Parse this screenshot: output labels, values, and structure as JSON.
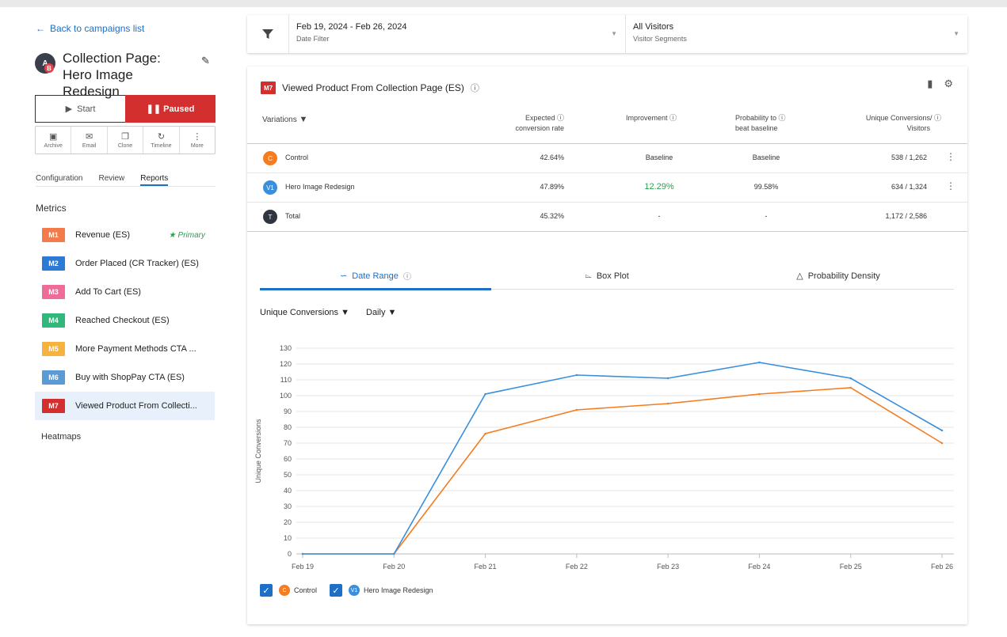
{
  "sidebar": {
    "back_label": "Back to campaigns list",
    "campaign_title": "Collection Page: Hero Image Redesign",
    "start_label": "Start",
    "paused_label": "Paused",
    "actions": [
      "Archive",
      "Email",
      "Clone",
      "Timeline",
      "More"
    ],
    "tabs": [
      "Configuration",
      "Review",
      "Reports"
    ],
    "active_tab": "Reports",
    "metrics_heading": "Metrics",
    "metrics": [
      {
        "badge": "M1",
        "label": "Revenue (ES)",
        "color": "#f37a4a",
        "primary": "Primary"
      },
      {
        "badge": "M2",
        "label": "Order Placed (CR Tracker) (ES)",
        "color": "#2b7bd6"
      },
      {
        "badge": "M3",
        "label": "Add To Cart (ES)",
        "color": "#ef6b9a"
      },
      {
        "badge": "M4",
        "label": "Reached Checkout (ES)",
        "color": "#2fb87a"
      },
      {
        "badge": "M5",
        "label": "More Payment Methods CTA ...",
        "color": "#f6b23e"
      },
      {
        "badge": "M6",
        "label": "Buy with ShopPay CTA (ES)",
        "color": "#5b9bd5"
      },
      {
        "badge": "M7",
        "label": "Viewed Product From Collecti...",
        "color": "#d32f2f"
      }
    ],
    "heatmaps_label": "Heatmaps"
  },
  "filters": {
    "date_value": "Feb 19, 2024 - Feb 26, 2024",
    "date_label": "Date Filter",
    "segment_value": "All Visitors",
    "segment_label": "Visitor Segments"
  },
  "report": {
    "badge": "M7",
    "title": "Viewed Product From Collection Page (ES)",
    "columns": {
      "variations": "Variations",
      "expected_1": "Expected",
      "expected_2": "conversion rate",
      "improvement": "Improvement",
      "prob_1": "Probability to",
      "prob_2": "beat baseline",
      "uc_1": "Unique Conversions/",
      "uc_2": "Visitors"
    },
    "rows": [
      {
        "badge": "C",
        "color": "#f57c1f",
        "name": "Control",
        "rate": "42.64%",
        "improvement": "Baseline",
        "probability": "Baseline",
        "conversions": "538 / 1,262"
      },
      {
        "badge": "V1",
        "color": "#3a8fdc",
        "name": "Hero Image Redesign",
        "rate": "47.89%",
        "improvement": "12.29%",
        "probability": "99.58%",
        "conversions": "634 / 1,324"
      },
      {
        "badge": "T",
        "color": "#2f3640",
        "name": "Total",
        "rate": "45.32%",
        "improvement": "-",
        "probability": "-",
        "conversions": "1,172 / 2,586"
      }
    ],
    "improvement_color": "#2e9e4f"
  },
  "chart_tabs": [
    "Date Range",
    "Box Plot",
    "Probability Density"
  ],
  "active_chart_tab": "Date Range",
  "metric_dropdown": "Unique Conversions",
  "interval_dropdown": "Daily",
  "legend": [
    {
      "badge": "C",
      "label": "Control",
      "color": "#f57c1f"
    },
    {
      "badge": "V1",
      "label": "Hero Image Redesign",
      "color": "#3a8fdc"
    }
  ],
  "chart_data": {
    "type": "line",
    "categories": [
      "Feb 19",
      "Feb 20",
      "Feb 21",
      "Feb 22",
      "Feb 23",
      "Feb 24",
      "Feb 25",
      "Feb 26"
    ],
    "series": [
      {
        "name": "Control",
        "color": "#f57c1f",
        "values": [
          0,
          0,
          76,
          91,
          95,
          101,
          105,
          70
        ]
      },
      {
        "name": "Hero Image Redesign",
        "color": "#3a8fdc",
        "values": [
          0,
          0,
          101,
          113,
          111,
          121,
          111,
          78
        ]
      }
    ],
    "ylabel": "Unique Conversions",
    "xlabel": "",
    "ylim": [
      0,
      130
    ],
    "yticks": [
      0,
      10,
      20,
      30,
      40,
      50,
      60,
      70,
      80,
      90,
      100,
      110,
      120,
      130
    ],
    "grid": true
  }
}
